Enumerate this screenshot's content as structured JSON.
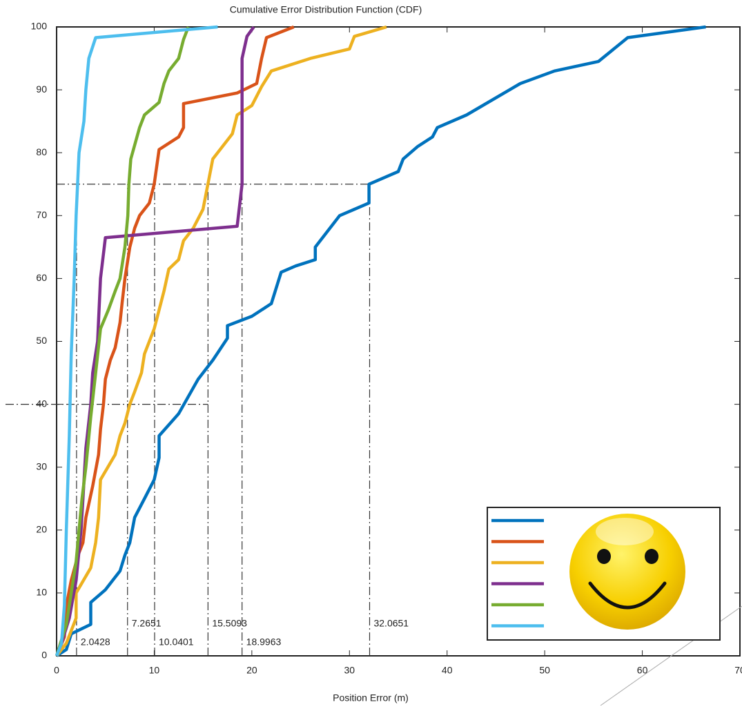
{
  "chart_data": {
    "type": "line",
    "title": "Cumulative Error Distribution Function (CDF)",
    "x_label": "Position Error (m)",
    "xlim": [
      0,
      70
    ],
    "xticks": [
      0,
      10,
      20,
      30,
      40,
      50,
      60,
      70
    ],
    "ylim": [
      0,
      100
    ],
    "yticks": [
      0,
      10,
      20,
      30,
      40,
      50,
      60,
      70,
      80,
      90,
      100
    ],
    "grid": false,
    "series": [
      {
        "color": "#0072bd",
        "x": [
          0,
          1,
          1.5,
          3.5,
          3.5,
          5,
          6.5,
          7,
          7.5,
          8,
          9,
          10,
          10.5,
          10.5,
          12.5,
          14.5,
          16,
          17.5,
          17.5,
          20,
          22,
          23,
          24.5,
          26.5,
          26.5,
          28,
          29,
          32,
          32,
          35,
          35.5,
          37,
          38.5,
          39,
          42,
          47.5,
          51,
          55.5,
          58.5,
          66.5
        ],
        "values": [
          0,
          1,
          3.5,
          5,
          8.5,
          10.5,
          13.5,
          16,
          18,
          22,
          25,
          28,
          31.5,
          35,
          38.5,
          44,
          47,
          50.5,
          52.5,
          54,
          56,
          61,
          62,
          63,
          65,
          68,
          70,
          72,
          75,
          77,
          79,
          81,
          82.5,
          84,
          86,
          91,
          93,
          94.5,
          98.3,
          100
        ]
      },
      {
        "color": "#d95319",
        "x": [
          0,
          0.8,
          1,
          1.5,
          2.2,
          2.7,
          3,
          3.7,
          4.3,
          4.5,
          4.8,
          5,
          5.5,
          6,
          6.5,
          6.7,
          7,
          7.5,
          8,
          8.5,
          9.5,
          10,
          10.5,
          12.5,
          13,
          13,
          18.5,
          20.5,
          21,
          21.5,
          24.3
        ],
        "values": [
          0,
          3,
          8,
          12,
          16,
          18,
          22,
          27,
          32,
          36,
          40,
          44,
          47,
          49,
          53,
          56,
          60,
          65,
          68,
          70,
          72,
          75,
          80.5,
          82.5,
          84,
          87.8,
          89.5,
          91,
          95,
          98.3,
          100
        ]
      },
      {
        "color": "#edb120",
        "x": [
          0,
          1,
          2,
          2,
          3.5,
          4,
          4.3,
          4.5,
          6,
          6.5,
          7,
          7.5,
          8,
          8.7,
          9,
          10,
          11,
          11.5,
          12.5,
          13,
          14,
          15,
          15.5,
          16,
          17,
          18,
          18.5,
          20,
          21,
          22,
          26,
          30,
          30.5,
          33.8
        ],
        "values": [
          0,
          2,
          6,
          10,
          14,
          18,
          22,
          28,
          32,
          35,
          37,
          40,
          42,
          45,
          48,
          52,
          58,
          61.5,
          63,
          66,
          68,
          71,
          75,
          79,
          81,
          83,
          86,
          87.5,
          90.5,
          93,
          95,
          96.5,
          98.5,
          100
        ]
      },
      {
        "color": "#7e2f8e",
        "x": [
          0,
          0.5,
          1.3,
          2,
          2.5,
          2.7,
          3,
          3.5,
          3.7,
          4.2,
          4.5,
          5,
          18.5,
          19,
          19,
          19.5,
          20.2
        ],
        "values": [
          0,
          2,
          6,
          12,
          20,
          25,
          33,
          40,
          45,
          50,
          60,
          66.5,
          68.3,
          75,
          95,
          98.5,
          100
        ]
      },
      {
        "color": "#77ac30",
        "x": [
          0,
          1,
          1.5,
          2,
          2.3,
          2.6,
          3,
          3.5,
          4,
          4.5,
          5.3,
          6,
          6.5,
          7,
          7.3,
          7.4,
          7.6,
          8.5,
          9,
          10.5,
          11,
          11.5,
          12.5,
          13,
          13.5
        ],
        "values": [
          0,
          5,
          10,
          15,
          20,
          25,
          30,
          38,
          45,
          52,
          55,
          58,
          60,
          65,
          70,
          75,
          79,
          84,
          86,
          88,
          91,
          93,
          95,
          98,
          100
        ]
      },
      {
        "color": "#4dbeee",
        "x": [
          0,
          0.5,
          0.8,
          1,
          1.3,
          1.5,
          1.8,
          2,
          2.3,
          2.8,
          3,
          3.3,
          4,
          16.5
        ],
        "values": [
          0,
          2,
          8,
          20,
          35,
          48,
          60,
          70,
          80,
          85,
          90,
          95,
          98.3,
          100
        ]
      }
    ],
    "markers": [
      2.0428,
      7.2651,
      10.0401,
      15.5093,
      18.9963,
      32.0651
    ],
    "marker_level": 75,
    "hlines": [
      {
        "y": 75,
        "x_end": 32.0651
      },
      {
        "y": 40,
        "x_end": 15.5093
      }
    ]
  }
}
